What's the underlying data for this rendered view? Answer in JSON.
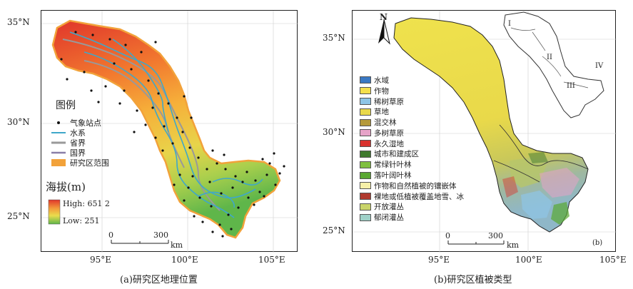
{
  "panel_a": {
    "caption": "(a)研究区地理位置",
    "lat_ticks": [
      "35°N",
      "30°N",
      "25°N"
    ],
    "lon_ticks": [
      "95°E",
      "100°E",
      "105°E"
    ],
    "legend_title": "图例",
    "legend_items": [
      {
        "label": "气象站点",
        "symbol": "dot",
        "color": "#111111"
      },
      {
        "label": "水系",
        "symbol": "line",
        "color": "#3fa7c9"
      },
      {
        "label": "省界",
        "symbol": "line",
        "color": "#999999"
      },
      {
        "label": "国界",
        "symbol": "line",
        "color": "#8a7fa8"
      },
      {
        "label": "研究区范围",
        "symbol": "box",
        "color": "#f2a23a"
      }
    ],
    "elevation_title": "海拔(m)",
    "elevation_high": "High: 651 2",
    "elevation_low": "Low: 251",
    "scale": {
      "zero": "0",
      "value": "300",
      "unit": "km"
    }
  },
  "panel_b": {
    "caption": "(b)研究区植被类型",
    "lat_ticks": [
      "35°N",
      "30°N",
      "25°N"
    ],
    "lon_ticks": [
      "95°E",
      "100°E",
      "105°E"
    ],
    "north": "N",
    "panel_label": "(b)",
    "inset_labels": [
      "I",
      "II",
      "III",
      "IV"
    ],
    "legend_items": [
      {
        "label": "水域",
        "color": "#3a79c4"
      },
      {
        "label": "作物",
        "color": "#f4e04d"
      },
      {
        "label": "稀树草原",
        "color": "#8ec5e6"
      },
      {
        "label": "草地",
        "color": "#e9d94a"
      },
      {
        "label": "混交林",
        "color": "#b59a3a"
      },
      {
        "label": "多树草原",
        "color": "#e6a3c8"
      },
      {
        "label": "永久湿地",
        "color": "#d9322e"
      },
      {
        "label": "城市和建成区",
        "color": "#3f7a2e"
      },
      {
        "label": "常绿针叶林",
        "color": "#7fbf3f"
      },
      {
        "label": "落叶阔叶林",
        "color": "#5aa832"
      },
      {
        "label": "作物和自然植被的镶嵌体",
        "color": "#f6f0a8"
      },
      {
        "label": "裸地或低植被覆盖地雪、冰",
        "color": "#b03a2e"
      },
      {
        "label": "开放灌丛",
        "color": "#c9d46a"
      },
      {
        "label": "郁闭灌丛",
        "color": "#9fd1c8"
      }
    ],
    "scale": {
      "zero": "0",
      "value": "300",
      "unit": "km"
    }
  }
}
